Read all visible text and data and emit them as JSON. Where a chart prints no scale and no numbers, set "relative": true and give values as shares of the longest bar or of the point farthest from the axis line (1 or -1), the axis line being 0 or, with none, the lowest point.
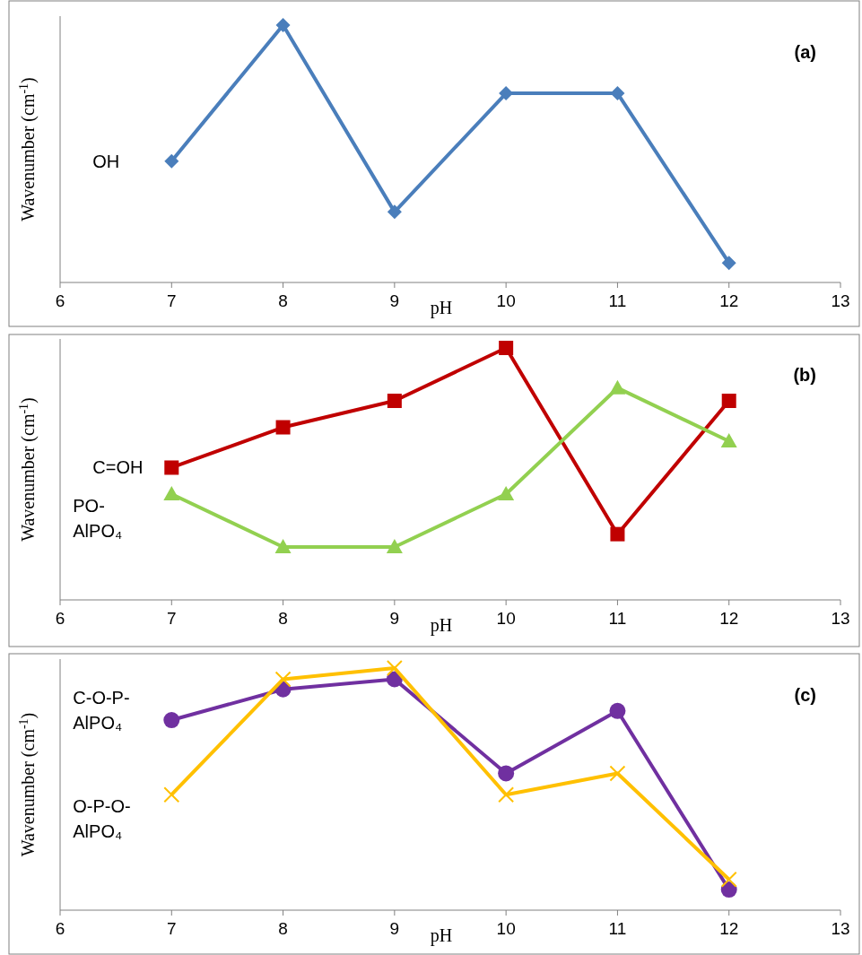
{
  "chart_data": [
    {
      "type": "line",
      "annotations": [
        "(a)"
      ],
      "xlabel": "pH",
      "ylabel": "Wavenumber (cm$^{-1}$)",
      "relative": true,
      "x": [
        7,
        8,
        9,
        10,
        11,
        12
      ],
      "xlim": [
        6,
        13
      ],
      "xticks": [
        6,
        7,
        8,
        9,
        10,
        11,
        12,
        13
      ],
      "tick_labels": "x",
      "series": [
        {
          "name": "OH",
          "color": "#4a7ebb",
          "marker": "diamond",
          "values": [
            0.471,
            1,
            0.274,
            0.735,
            0.735,
            0.076
          ]
        }
      ]
    },
    {
      "type": "line",
      "annotations": [
        "(b)"
      ],
      "xlabel": "pH",
      "ylabel": "Wavenumber (cm$^{-1}$)",
      "relative": true,
      "x": [
        7,
        8,
        9,
        10,
        11,
        12
      ],
      "xlim": [
        6,
        13
      ],
      "xticks": [
        6,
        7,
        8,
        9,
        10,
        11,
        12,
        13
      ],
      "tick_labels": "x",
      "series": [
        {
          "name": "C=OH",
          "color": "#c00000",
          "marker": "square",
          "values": [
            0.525,
            0.685,
            0.79,
            1,
            0.261,
            0.79
          ]
        },
        {
          "name": "PO-AlPO₄",
          "color": "#92d050",
          "marker": "triangle",
          "values": [
            0.42,
            0.21,
            0.21,
            0.42,
            0.841,
            0.63
          ]
        }
      ]
    },
    {
      "type": "line",
      "annotations": [
        "(c)"
      ],
      "xlabel": "pH",
      "ylabel": "Wavenumber (cm$^{-1}$)",
      "relative": true,
      "x": [
        7,
        8,
        9,
        10,
        11,
        12
      ],
      "xlim": [
        6,
        13
      ],
      "xticks": [
        6,
        7,
        8,
        9,
        10,
        11,
        12,
        13
      ],
      "tick_labels": "x",
      "series": [
        {
          "name": "C-O-P-AlPO₄",
          "color": "#7030a0",
          "marker": "circle",
          "values": [
            0.785,
            0.912,
            0.954,
            0.565,
            0.823,
            0.085
          ]
        },
        {
          "name": "O-P-O-AlPO₄",
          "color": "#ffc000",
          "marker": "cross",
          "values": [
            0.477,
            0.954,
            1,
            0.477,
            0.565,
            0.127
          ]
        }
      ]
    }
  ]
}
